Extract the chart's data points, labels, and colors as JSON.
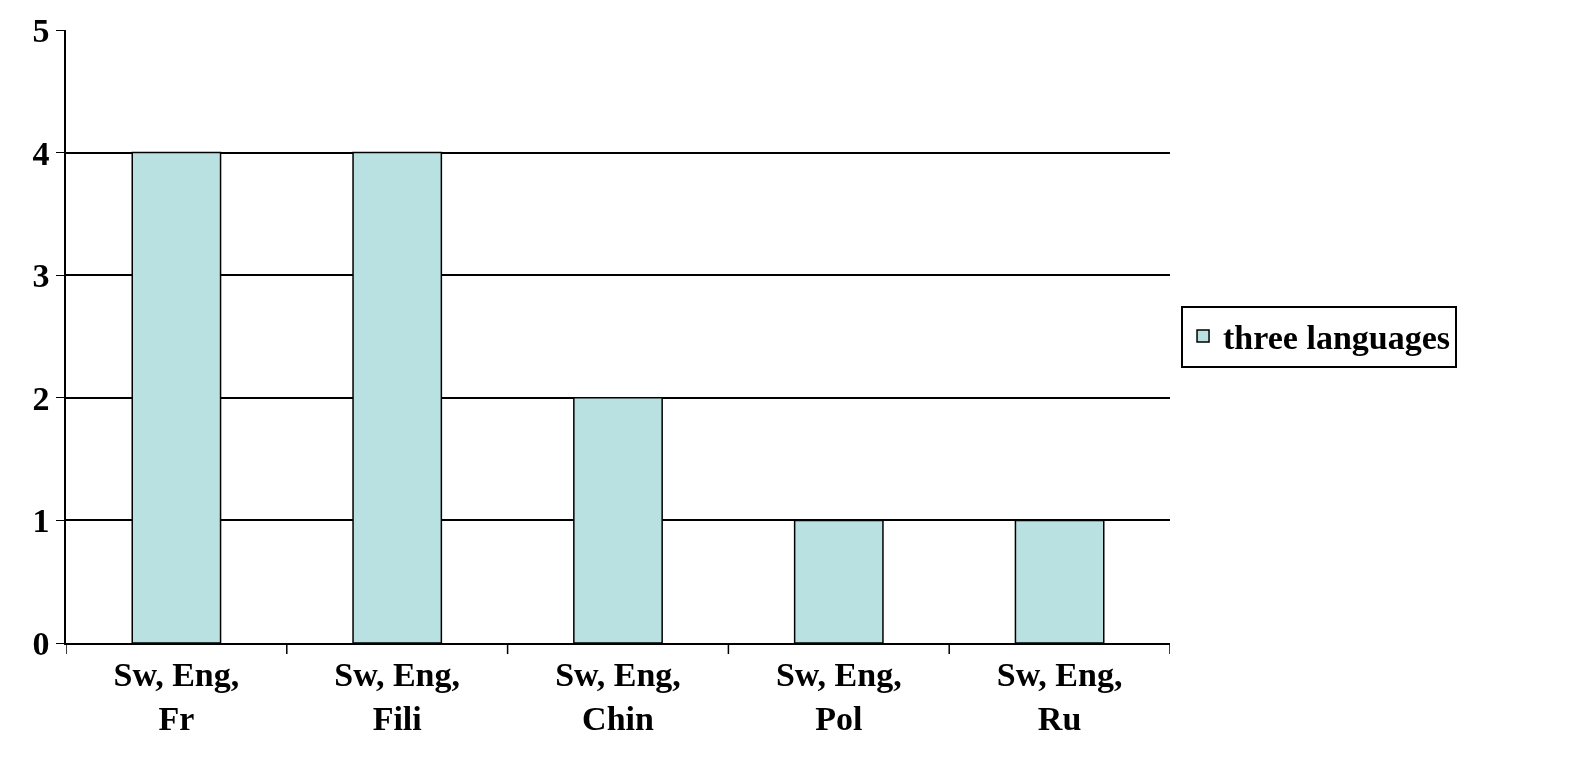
{
  "chart_data": {
    "type": "bar",
    "categories": [
      "Sw, Eng, Fr",
      "Sw, Eng, Fili",
      "Sw, Eng, Chin",
      "Sw, Eng, Pol",
      "Sw, Eng, Ru"
    ],
    "series": [
      {
        "name": "three languages",
        "color": "#b9e1e2",
        "values": [
          4,
          4,
          2,
          1,
          1
        ]
      }
    ],
    "ylim": [
      0,
      5
    ],
    "yticks": [
      0,
      1,
      2,
      3,
      4,
      5
    ],
    "grid": "y",
    "legend": "right"
  }
}
